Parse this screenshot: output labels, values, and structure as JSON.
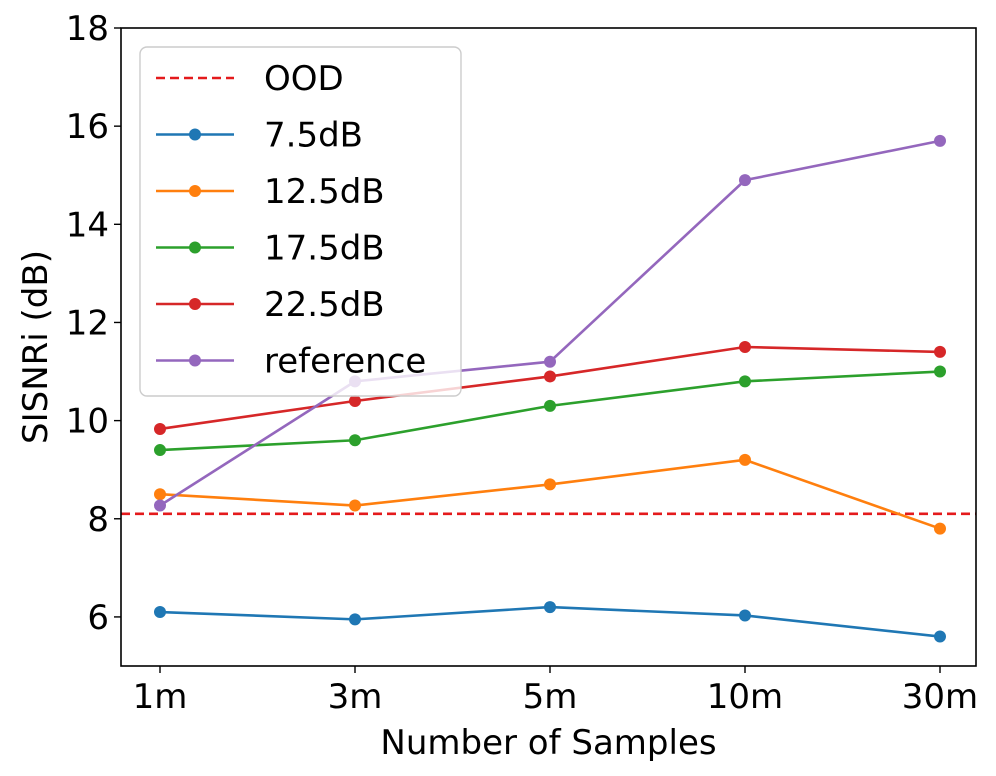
{
  "chart_data": {
    "type": "line",
    "title": "",
    "xlabel": "Number of Samples",
    "ylabel": "SISNRi (dB)",
    "categories": [
      "1m",
      "3m",
      "5m",
      "10m",
      "30m"
    ],
    "ylim": [
      5,
      18
    ],
    "yticks": [
      6,
      8,
      10,
      12,
      14,
      16,
      18
    ],
    "legend_position": "top-left",
    "reference_line": {
      "name": "OOD",
      "value": 8.1,
      "color": "#e41a1c",
      "style": "dashed"
    },
    "series": [
      {
        "name": "7.5dB",
        "color": "#1f77b4",
        "values": [
          6.1,
          5.95,
          6.2,
          6.03,
          5.6
        ]
      },
      {
        "name": "12.5dB",
        "color": "#ff7f0e",
        "values": [
          8.5,
          8.27,
          8.7,
          9.2,
          7.8
        ]
      },
      {
        "name": "17.5dB",
        "color": "#2ca02c",
        "values": [
          9.4,
          9.6,
          10.3,
          10.8,
          11.0
        ]
      },
      {
        "name": "22.5dB",
        "color": "#d62728",
        "values": [
          9.83,
          10.4,
          10.9,
          11.5,
          11.4
        ]
      },
      {
        "name": "reference",
        "color": "#9467bd",
        "values": [
          8.27,
          10.8,
          11.2,
          14.9,
          15.7
        ]
      }
    ]
  }
}
